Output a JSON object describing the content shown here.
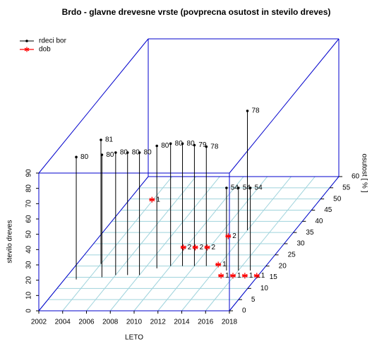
{
  "chart_data": {
    "type": "scatter3d",
    "title": "Brdo - glavne drevesne vrste (povprecna osutost in stevilo dreves)",
    "xlabel": "LETO",
    "ylabel": "osutost [ % ]",
    "zlabel": "stevilo dreves",
    "xlim": [
      2002,
      2018
    ],
    "xticks": [
      2002,
      2004,
      2006,
      2008,
      2010,
      2012,
      2014,
      2016,
      2018
    ],
    "ylim": [
      0,
      60
    ],
    "yticks": [
      0,
      5,
      10,
      15,
      20,
      25,
      30,
      35,
      40,
      45,
      50,
      55,
      60
    ],
    "zlim": [
      0,
      90
    ],
    "zticks": [
      0,
      10,
      20,
      30,
      40,
      50,
      60,
      70,
      80,
      90
    ],
    "grid": true,
    "drop_lines": true,
    "legend": "top-left",
    "box_color": "#0000cc",
    "grid_color": "#9fd3dc",
    "series": [
      {
        "name": "rdeci bor",
        "color": "#000000",
        "marker": "dot",
        "x": [
          2003,
          2004,
          2005,
          2006,
          2007,
          2008,
          2009,
          2010,
          2011,
          2012,
          2013,
          2014,
          2015,
          2016,
          2017
        ],
        "y": [
          14,
          21,
          15,
          16,
          16,
          16,
          19,
          20,
          20,
          20,
          20,
          36,
          18,
          18,
          18
        ],
        "z": [
          80,
          81,
          80,
          80,
          80,
          80,
          80,
          80,
          80,
          79,
          78,
          78,
          54,
          54,
          54
        ]
      },
      {
        "name": "dob",
        "color": "#ff0000",
        "marker": "asterisk",
        "x": [
          2004,
          2010,
          2011,
          2012,
          2013,
          2014,
          2015,
          2016,
          2017,
          2018
        ],
        "y": [
          49,
          27,
          27,
          27,
          32,
          20,
          15,
          15,
          15,
          15
        ],
        "z": [
          1,
          2,
          2,
          2,
          2,
          1,
          1,
          1,
          1,
          1
        ]
      }
    ]
  }
}
